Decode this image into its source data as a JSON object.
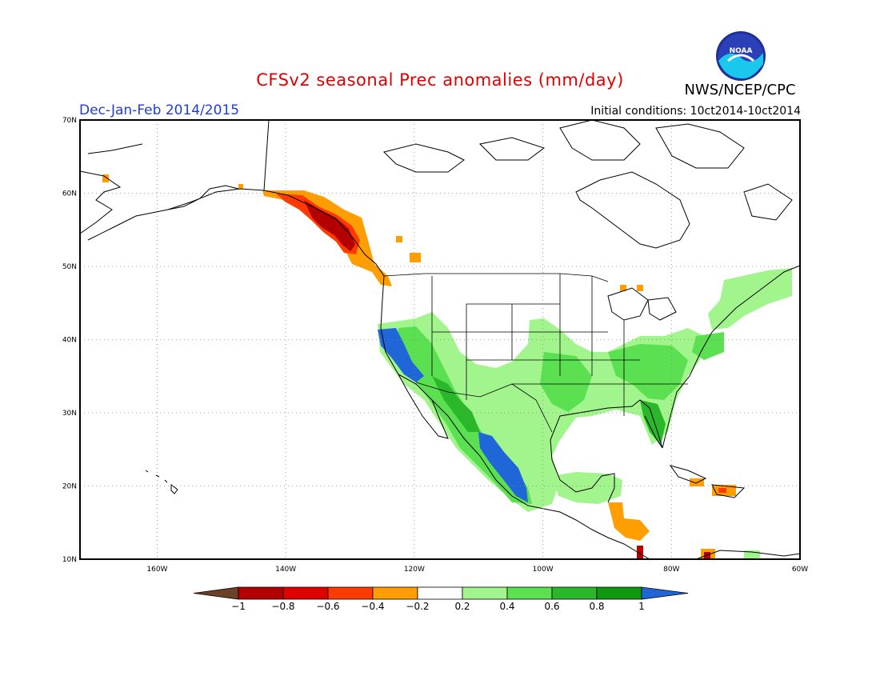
{
  "header": {
    "title": "CFSv2 seasonal Prec anomalies (mm/day)",
    "agency": "NWS/NCEP/CPC",
    "season": "Dec-Jan-Feb 2014/2015",
    "initial_conditions": "Initial conditions: 10ct2014-10ct2014",
    "logo_text": "NOAA"
  },
  "map": {
    "lon_range": [
      -172,
      -60
    ],
    "lat_range": [
      10,
      70
    ],
    "lat_ticks": [
      "70N",
      "60N",
      "50N",
      "40N",
      "30N",
      "20N",
      "10N"
    ],
    "lon_ticks": [
      "160W",
      "140W",
      "120W",
      "100W",
      "80W",
      "60W"
    ],
    "grid": "dotted",
    "anomaly_regions": [
      {
        "name": "Alaska panhandle / BC coast",
        "class": "-0.8",
        "lon": [
          -134,
          -128
        ],
        "lat": [
          53,
          59
        ]
      },
      {
        "name": "BC coast fringe",
        "class": "-0.4",
        "lon": [
          -140,
          -124
        ],
        "lat": [
          48,
          60
        ]
      },
      {
        "name": "California coast",
        "class": ">1",
        "lon": [
          -124,
          -118
        ],
        "lat": [
          35,
          41
        ]
      },
      {
        "name": "Western Mexico coast",
        "class": ">1",
        "lon": [
          -108,
          -102
        ],
        "lat": [
          17,
          24
        ]
      },
      {
        "name": "Southern US",
        "class": "0.4",
        "lon": [
          -108,
          -76
        ],
        "lat": [
          27,
          39
        ]
      },
      {
        "name": "Florida",
        "class": "0.8",
        "lon": [
          -83,
          -80
        ],
        "lat": [
          25,
          30
        ]
      },
      {
        "name": "Central America",
        "class": "-0.4",
        "lon": [
          -90,
          -84
        ],
        "lat": [
          12,
          16
        ]
      }
    ]
  },
  "colorbar": {
    "labels": [
      "-1",
      "-0.8",
      "-0.6",
      "-0.4",
      "-0.2",
      "0.2",
      "0.4",
      "0.6",
      "0.8",
      "1"
    ],
    "colors": [
      "#6b4226",
      "#b40000",
      "#e00000",
      "#ff3a00",
      "#ff9e00",
      "#ffffff",
      "#a2f58c",
      "#5ae050",
      "#2ab82a",
      "#109810",
      "#1f66d9"
    ]
  }
}
